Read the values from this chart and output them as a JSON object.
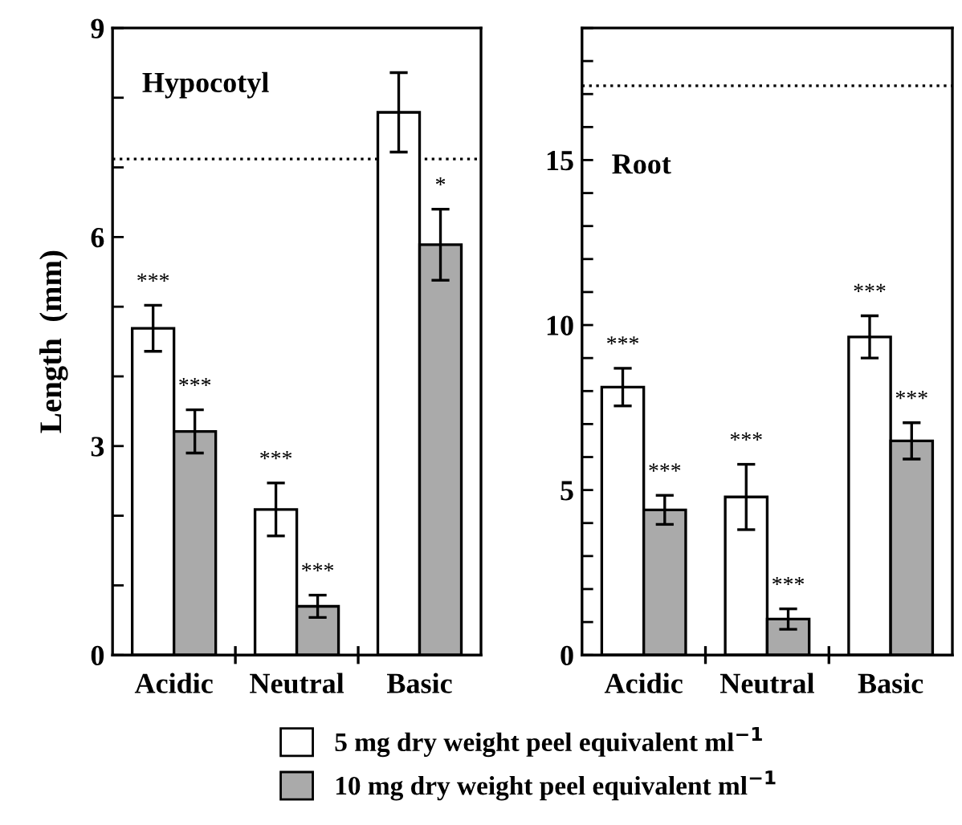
{
  "chart_data": [
    {
      "type": "bar",
      "title": "Hypocotyl",
      "ylabel": "Length  (mm)",
      "categories": [
        "Acidic",
        "Neutral",
        "Basic"
      ],
      "series": [
        {
          "name": "5 mg dry weight peel equivalent ml$^{−1}$",
          "color": "#ffffff",
          "values": [
            4.69,
            2.09,
            7.79
          ],
          "errors": [
            0.33,
            0.38,
            0.57
          ]
        },
        {
          "name": "10 mg dry weight peel equivalent ml$^{−1}$",
          "color": "#aaaaaa",
          "values": [
            3.21,
            0.7,
            5.89
          ],
          "errors": [
            0.31,
            0.16,
            0.51
          ]
        }
      ],
      "ylim": [
        0,
        9
      ],
      "yticks": [
        0,
        {
          "value": 1,
          "label": null
        },
        {
          "value": 2,
          "label": null
        },
        3,
        {
          "value": 4,
          "label": null
        },
        {
          "value": 5,
          "label": null
        },
        6,
        {
          "value": 7,
          "label": null
        },
        {
          "value": 8,
          "label": null
        },
        9
      ],
      "ref_lines": [
        {
          "axis": "y",
          "value": 7.12,
          "line_style": "dotted"
        }
      ],
      "annotations": [
        {
          "text": "***",
          "x": "Acidic",
          "y": 4.69
        },
        {
          "text": "***",
          "x": "Acidic",
          "y": 3.21
        },
        {
          "text": "***",
          "x": "Neutral",
          "y": 2.09
        },
        {
          "text": "***",
          "x": "Neutral",
          "y": 0.7
        },
        {
          "text": "*",
          "x": "Basic",
          "y": 5.89
        }
      ],
      "legend": "bottom",
      "grid": false
    },
    {
      "type": "bar",
      "title": "Root",
      "categories": [
        "Acidic",
        "Neutral",
        "Basic"
      ],
      "series": [
        {
          "color": "#ffffff",
          "values": [
            8.12,
            4.79,
            9.64
          ],
          "errors": [
            0.57,
            0.99,
            0.64
          ]
        },
        {
          "color": "#aaaaaa",
          "values": [
            4.4,
            1.09,
            6.49
          ],
          "errors": [
            0.44,
            0.31,
            0.55
          ]
        }
      ],
      "ylim": [
        0,
        19
      ],
      "yticks": [
        0,
        {
          "value": 1,
          "label": null
        },
        {
          "value": 2,
          "label": null
        },
        {
          "value": 3,
          "label": null
        },
        {
          "value": 4,
          "label": null
        },
        5,
        {
          "value": 6,
          "label": null
        },
        {
          "value": 7,
          "label": null
        },
        {
          "value": 8,
          "label": null
        },
        {
          "value": 9,
          "label": null
        },
        10,
        {
          "value": 11,
          "label": null
        },
        {
          "value": 12,
          "label": null
        },
        {
          "value": 13,
          "label": null
        },
        {
          "value": 14,
          "label": null
        },
        15,
        {
          "value": 16,
          "label": null
        },
        {
          "value": 17,
          "label": null
        },
        {
          "value": 18,
          "label": null
        },
        {
          "value": 19,
          "label": null
        }
      ],
      "ref_lines": [
        {
          "axis": "y",
          "value": 17.25,
          "line_style": "dotted"
        }
      ],
      "annotations": [
        {
          "text": "***",
          "x": "Acidic",
          "y": 8.12
        },
        {
          "text": "***",
          "x": "Acidic",
          "y": 4.4
        },
        {
          "text": "***",
          "x": "Neutral",
          "y": 4.79
        },
        {
          "text": "***",
          "x": "Neutral",
          "y": 1.09
        },
        {
          "text": "***",
          "x": "Basic",
          "y": 9.64
        },
        {
          "text": "***",
          "x": "Basic",
          "y": 6.49
        }
      ],
      "grid": false
    }
  ]
}
